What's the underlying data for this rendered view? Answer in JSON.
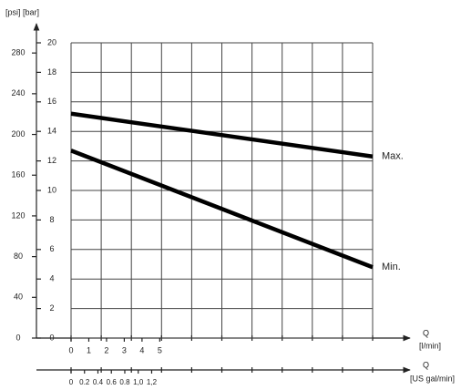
{
  "chart_data": {
    "type": "line",
    "y_axis_label": "[psi] [bar]",
    "x_axis_label": "Q",
    "x_unit": "[l/min]",
    "x2_axis_label": "Q",
    "x2_unit": "[US gal/min]",
    "x": [
      0,
      17
    ],
    "series": [
      {
        "name": "Max.",
        "color": "#000000",
        "values": [
          15.2,
          12.3
        ]
      },
      {
        "name": "Min.",
        "color": "#000000",
        "values": [
          12.7,
          4.8
        ]
      }
    ],
    "xlim": [
      0,
      17
    ],
    "xticks": [
      0,
      1,
      2,
      3,
      4,
      5
    ],
    "x2lim": [
      0,
      4.49
    ],
    "x2ticks": [
      0,
      0.2,
      0.4,
      0.6,
      0.8,
      {
        "value": 1.0,
        "label": "1,0"
      },
      {
        "value": 1.2,
        "label": "1,2"
      }
    ],
    "ylim": [
      0,
      20
    ],
    "yticks": [
      0,
      2,
      4,
      6,
      8,
      10,
      12,
      14,
      16,
      18,
      20
    ],
    "y2lim": [
      0,
      290
    ],
    "y2ticks": [
      0,
      40,
      80,
      120,
      160,
      200,
      240,
      280
    ],
    "grid": true
  }
}
